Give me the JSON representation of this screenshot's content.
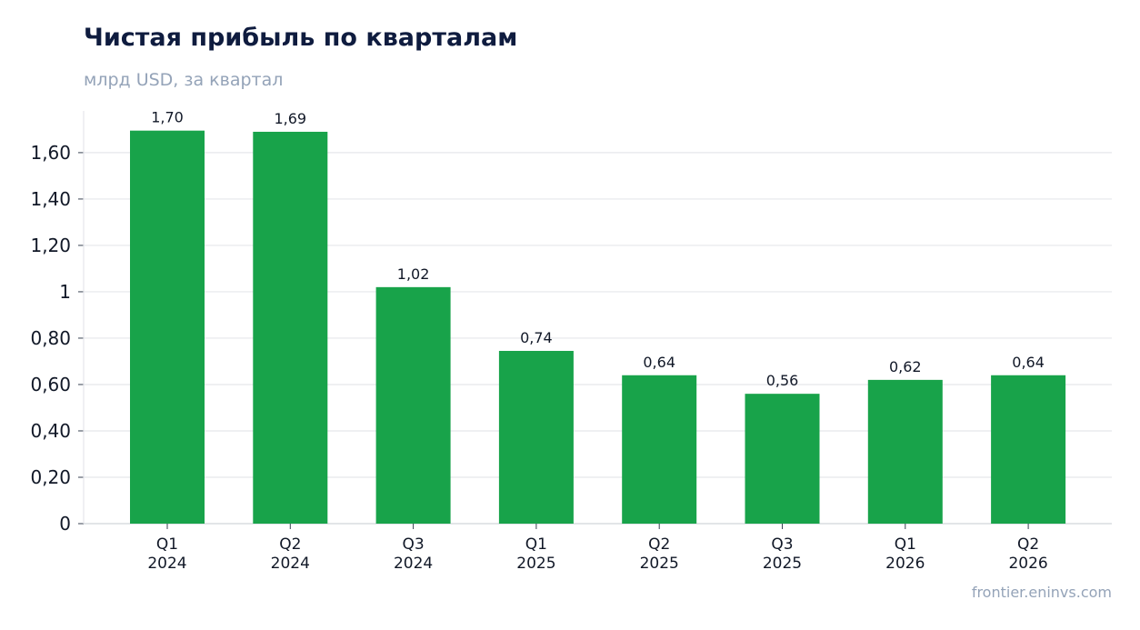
{
  "chart_data": {
    "type": "bar",
    "title": "Чистая прибыль по кварталам",
    "subtitle": "млрд USD, за квартал",
    "categories": [
      [
        "Q1",
        "2024"
      ],
      [
        "Q2",
        "2024"
      ],
      [
        "Q3",
        "2024"
      ],
      [
        "Q1",
        "2025"
      ],
      [
        "Q2",
        "2025"
      ],
      [
        "Q3",
        "2025"
      ],
      [
        "Q1",
        "2026"
      ],
      [
        "Q2",
        "2026"
      ]
    ],
    "values": [
      1.695,
      1.69,
      1.02,
      0.745,
      0.64,
      0.56,
      0.62,
      0.64
    ],
    "data_labels": [
      "1,70",
      "1,69",
      "1,02",
      "0,74",
      "0,64",
      "0,56",
      "0,62",
      "0,64"
    ],
    "ylim": [
      0,
      1.78
    ],
    "yticks": [
      0,
      0.2,
      0.4,
      0.6,
      0.8,
      1,
      1.2,
      1.4,
      1.6
    ],
    "ytick_labels": [
      "0",
      "0,20",
      "0,40",
      "0,60",
      "0,80",
      "1",
      "1,20",
      "1,40",
      "1,60"
    ],
    "grid": true,
    "bar_color": "#18a34a",
    "grid_color": "#e5e7eb",
    "source": "frontier.eninvs.com"
  }
}
